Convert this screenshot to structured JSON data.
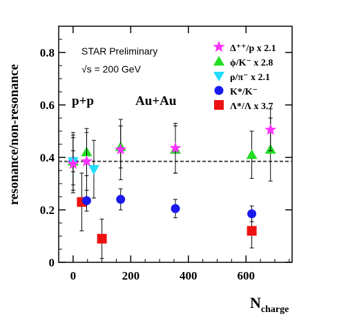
{
  "chart_data": {
    "type": "scatter",
    "xlabel": "N",
    "xlabel_sub": "charge",
    "ylabel": "resonance/non-resonance",
    "xlim": [
      -50,
      760
    ],
    "ylim": [
      0,
      0.9
    ],
    "xticks": [
      "0",
      "200",
      "400",
      "600"
    ],
    "yticks": [
      "0",
      "0.2",
      "0.4",
      "0.6",
      "0.8"
    ],
    "header": [
      "STAR Preliminary",
      "√s = 200 GeV"
    ],
    "system_labels": [
      "p+p",
      "Au+Au"
    ],
    "reference_line": 0.385,
    "series": [
      {
        "name": "Δ⁺⁺/p x 2.1",
        "marker": "star",
        "color": "#ff33ff",
        "points": [
          {
            "x": 0,
            "y": 0.375,
            "err": 0.11
          },
          {
            "x": 47,
            "y": 0.385,
            "err": 0.11
          },
          {
            "x": 165,
            "y": 0.43,
            "err": 0.115
          },
          {
            "x": 355,
            "y": 0.435,
            "err": 0.095
          },
          {
            "x": 685,
            "y": 0.505,
            "err": 0.08
          }
        ]
      },
      {
        "name": "ϕ/K⁻ x 2.8",
        "marker": "triangle-up",
        "color": "#22dd22",
        "points": [
          {
            "x": 0,
            "y": 0.385,
            "err": 0.09
          },
          {
            "x": 47,
            "y": 0.42,
            "err": 0.09
          },
          {
            "x": 165,
            "y": 0.44,
            "err": 0.08
          },
          {
            "x": 355,
            "y": 0.43,
            "err": 0.09
          },
          {
            "x": 620,
            "y": 0.41,
            "err": 0.09
          },
          {
            "x": 685,
            "y": 0.43,
            "err": 0.12
          }
        ]
      },
      {
        "name": "ρ/π⁻ x 2.1",
        "marker": "triangle-down",
        "color": "#22ddff",
        "points": [
          {
            "x": 0,
            "y": 0.385,
            "err": 0.11
          },
          {
            "x": 72,
            "y": 0.355,
            "err": 0.11
          }
        ]
      },
      {
        "name": "K*/K⁻",
        "marker": "circle",
        "color": "#1a1aee",
        "points": [
          {
            "x": 0,
            "y": 0.385,
            "err": 0.04
          },
          {
            "x": 47,
            "y": 0.235,
            "err": 0.04
          },
          {
            "x": 165,
            "y": 0.24,
            "err": 0.04
          },
          {
            "x": 355,
            "y": 0.205,
            "err": 0.035
          },
          {
            "x": 620,
            "y": 0.185,
            "err": 0.03
          }
        ]
      },
      {
        "name": "Λ*/Λ x 3.7",
        "marker": "square",
        "color": "#ee1111",
        "points": [
          {
            "x": 30,
            "y": 0.23,
            "err": 0.11
          },
          {
            "x": 100,
            "y": 0.09,
            "err": 0.075
          },
          {
            "x": 620,
            "y": 0.12,
            "err": 0.065
          }
        ]
      }
    ]
  }
}
